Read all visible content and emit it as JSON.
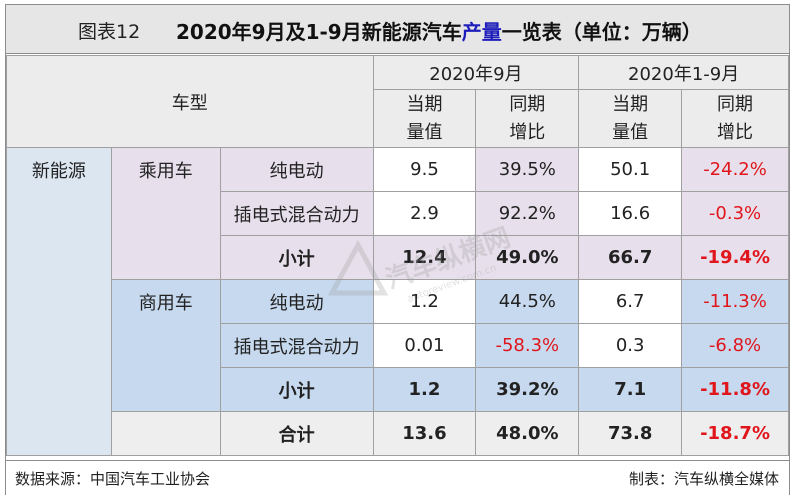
{
  "title": {
    "fig_no": "图表12",
    "main_pre": "2020年9月及1-9月新能源汽车",
    "main_hl": "产量",
    "main_post": "一览表（单位：万辆）"
  },
  "header": {
    "vehicle_type": "车型",
    "col_group_1": "2020年9月",
    "col_group_2": "2020年1-9月",
    "current_1": "当期",
    "current_2": "量值",
    "yoy_1": "同期",
    "yoy_2": "增比"
  },
  "rows": {
    "category": "新能源",
    "passenger": {
      "label": "乘用车",
      "bev": {
        "label": "纯电动",
        "sep_val": "9.5",
        "sep_yoy": "39.5%",
        "ytd_val": "50.1",
        "ytd_yoy": "-24.2%"
      },
      "phev": {
        "label": "插电式混合动力",
        "sep_val": "2.9",
        "sep_yoy": "92.2%",
        "ytd_val": "16.6",
        "ytd_yoy": "-0.3%"
      },
      "subtotal": {
        "label": "小计",
        "sep_val": "12.4",
        "sep_yoy": "49.0%",
        "ytd_val": "66.7",
        "ytd_yoy": "-19.4%"
      }
    },
    "commercial": {
      "label": "商用车",
      "bev": {
        "label": "纯电动",
        "sep_val": "1.2",
        "sep_yoy": "44.5%",
        "ytd_val": "6.7",
        "ytd_yoy": "-11.3%"
      },
      "phev": {
        "label": "插电式混合动力",
        "sep_val": "0.01",
        "sep_yoy": "-58.3%",
        "ytd_val": "0.3",
        "ytd_yoy": "-6.8%"
      },
      "subtotal": {
        "label": "小计",
        "sep_val": "1.2",
        "sep_yoy": "39.2%",
        "ytd_val": "7.1",
        "ytd_yoy": "-11.8%"
      }
    },
    "total": {
      "label": "合计",
      "sep_val": "13.6",
      "sep_yoy": "48.0%",
      "ytd_val": "73.8",
      "ytd_yoy": "-18.7%"
    }
  },
  "footer": {
    "source": "数据来源：中国汽车工业协会",
    "maker": "制表：汽车纵横全媒体"
  },
  "watermark": {
    "text": "汽车纵横网",
    "sub": "autoreview.com.cn"
  }
}
